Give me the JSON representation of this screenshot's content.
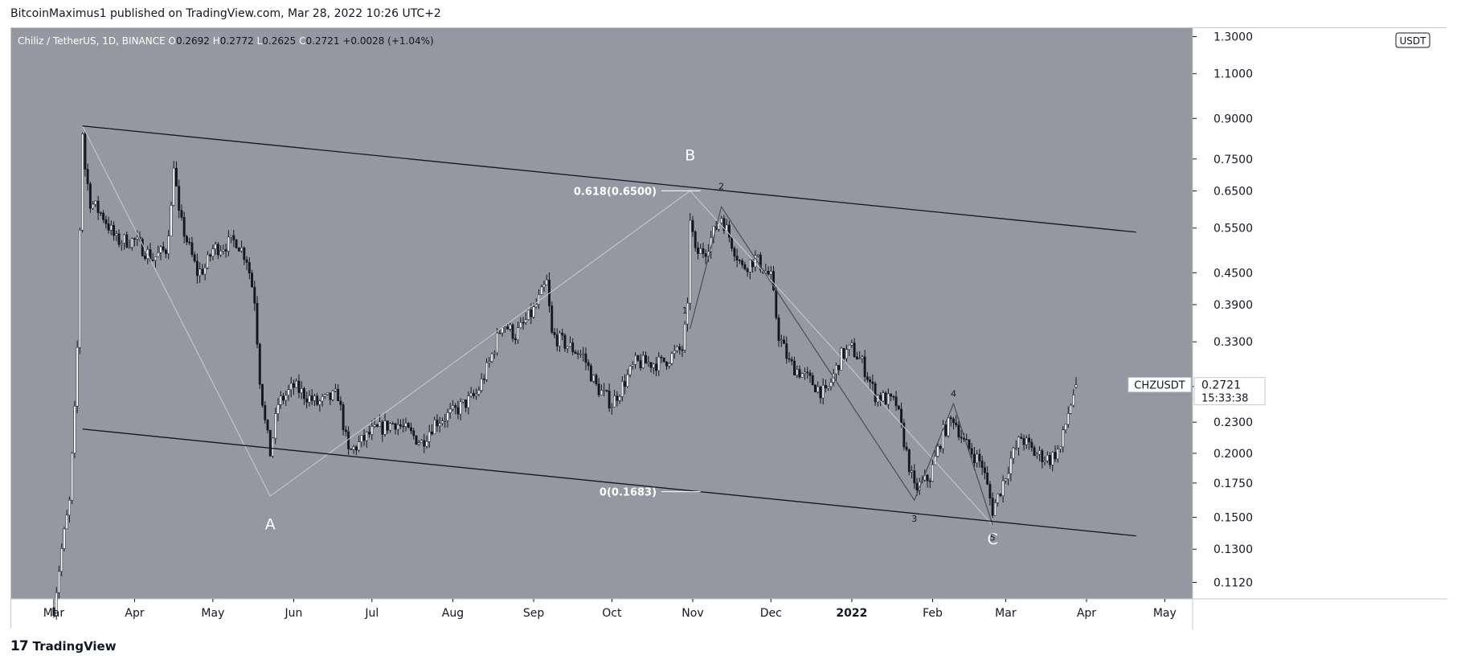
{
  "header": {
    "publisher": "BitcoinMaximus1 published on TradingView.com, Mar 28, 2022 10:26 UTC+2"
  },
  "footer": {
    "brand": "TradingView",
    "logo_icon": "tradingview-logo-icon"
  },
  "colors": {
    "background": "#9598a1",
    "axis_bg": "#ffffff",
    "candle_up": "#ffffff",
    "candle_down": "#131722",
    "channel": "#131722",
    "wave": "#4a4e59",
    "wave_light": "#c9cbd1",
    "label_text": "#ffffff"
  },
  "chart_data": {
    "type": "candlestick",
    "title": "Chiliz / TetherUS, 1D, BINANCE",
    "ohlc": {
      "o_label": "O",
      "o": "0.2692",
      "h_label": "H",
      "h": "0.2772",
      "l_label": "L",
      "l": "0.2625",
      "c_label": "C",
      "c": "0.2721",
      "change": "+0.0028 (+1.04%)"
    },
    "y_scale": "log",
    "ylim": [
      0.104,
      1.35
    ],
    "y_ticks": [
      "1.3000",
      "1.1000",
      "0.9000",
      "0.7500",
      "0.6500",
      "0.5500",
      "0.4500",
      "0.3900",
      "0.3300",
      "0.2700",
      "0.2300",
      "0.2000",
      "0.1750",
      "0.1500",
      "0.1300",
      "0.1120"
    ],
    "currency_badge": "USDT",
    "x_ticks": [
      "Mar",
      "Apr",
      "May",
      "Jun",
      "Jul",
      "Aug",
      "Sep",
      "Oct",
      "Nov",
      "Dec",
      "2022",
      "Feb",
      "Mar",
      "Apr",
      "May"
    ],
    "x_tick_dates": [
      "2021-03-01",
      "2021-04-01",
      "2021-05-01",
      "2021-06-01",
      "2021-07-01",
      "2021-08-01",
      "2021-09-01",
      "2021-10-01",
      "2021-11-01",
      "2021-12-01",
      "2022-01-01",
      "2022-02-01",
      "2022-03-01",
      "2022-04-01",
      "2022-05-01"
    ],
    "price_path": [
      [
        "2021-03-01",
        0.1
      ],
      [
        "2021-03-04",
        0.13
      ],
      [
        "2021-03-07",
        0.16
      ],
      [
        "2021-03-09",
        0.24
      ],
      [
        "2021-03-10",
        0.32
      ],
      [
        "2021-03-11",
        0.55
      ],
      [
        "2021-03-12",
        0.85
      ],
      [
        "2021-03-13",
        0.72
      ],
      [
        "2021-03-15",
        0.62
      ],
      [
        "2021-03-20",
        0.58
      ],
      [
        "2021-03-25",
        0.52
      ],
      [
        "2021-04-01",
        0.52
      ],
      [
        "2021-04-08",
        0.48
      ],
      [
        "2021-04-13",
        0.5
      ],
      [
        "2021-04-15",
        0.6
      ],
      [
        "2021-04-16",
        0.74
      ],
      [
        "2021-04-18",
        0.58
      ],
      [
        "2021-04-25",
        0.45
      ],
      [
        "2021-04-28",
        0.46
      ],
      [
        "2021-05-01",
        0.5
      ],
      [
        "2021-05-10",
        0.52
      ],
      [
        "2021-05-14",
        0.48
      ],
      [
        "2021-05-17",
        0.4
      ],
      [
        "2021-05-19",
        0.28
      ],
      [
        "2021-05-21",
        0.23
      ],
      [
        "2021-05-23",
        0.2
      ],
      [
        "2021-05-26",
        0.25
      ],
      [
        "2021-06-01",
        0.27
      ],
      [
        "2021-06-10",
        0.25
      ],
      [
        "2021-06-18",
        0.26
      ],
      [
        "2021-06-22",
        0.2
      ],
      [
        "2021-07-01",
        0.22
      ],
      [
        "2021-07-10",
        0.23
      ],
      [
        "2021-07-20",
        0.21
      ],
      [
        "2021-07-25",
        0.23
      ],
      [
        "2021-08-01",
        0.24
      ],
      [
        "2021-08-10",
        0.26
      ],
      [
        "2021-08-15",
        0.3
      ],
      [
        "2021-08-20",
        0.36
      ],
      [
        "2021-08-25",
        0.34
      ],
      [
        "2021-09-01",
        0.38
      ],
      [
        "2021-09-06",
        0.43
      ],
      [
        "2021-09-08",
        0.34
      ],
      [
        "2021-09-20",
        0.31
      ],
      [
        "2021-09-25",
        0.27
      ],
      [
        "2021-10-01",
        0.25
      ],
      [
        "2021-10-10",
        0.3
      ],
      [
        "2021-10-20",
        0.3
      ],
      [
        "2021-10-28",
        0.32
      ],
      [
        "2021-10-30",
        0.38
      ],
      [
        "2021-10-31",
        0.58
      ],
      [
        "2021-11-02",
        0.49
      ],
      [
        "2021-11-06",
        0.5
      ],
      [
        "2021-11-12",
        0.58
      ],
      [
        "2021-11-15",
        0.53
      ],
      [
        "2021-11-20",
        0.46
      ],
      [
        "2021-11-25",
        0.48
      ],
      [
        "2021-12-01",
        0.44
      ],
      [
        "2021-12-04",
        0.34
      ],
      [
        "2021-12-08",
        0.3
      ],
      [
        "2021-12-15",
        0.28
      ],
      [
        "2021-12-22",
        0.26
      ],
      [
        "2021-12-28",
        0.31
      ],
      [
        "2022-01-01",
        0.32
      ],
      [
        "2022-01-05",
        0.3
      ],
      [
        "2022-01-10",
        0.26
      ],
      [
        "2022-01-18",
        0.25
      ],
      [
        "2022-01-22",
        0.2
      ],
      [
        "2022-01-25",
        0.17
      ],
      [
        "2022-01-31",
        0.18
      ],
      [
        "2022-02-05",
        0.22
      ],
      [
        "2022-02-09",
        0.235
      ],
      [
        "2022-02-13",
        0.21
      ],
      [
        "2022-02-20",
        0.19
      ],
      [
        "2022-02-24",
        0.155
      ],
      [
        "2022-02-27",
        0.17
      ],
      [
        "2022-03-03",
        0.195
      ],
      [
        "2022-03-07",
        0.215
      ],
      [
        "2022-03-12",
        0.2
      ],
      [
        "2022-03-18",
        0.195
      ],
      [
        "2022-03-22",
        0.205
      ],
      [
        "2022-03-25",
        0.24
      ],
      [
        "2022-03-28",
        0.2721
      ]
    ],
    "channel_upper": {
      "from": [
        "2021-03-12",
        0.87
      ],
      "to": [
        "2022-04-20",
        0.54
      ]
    },
    "channel_lower": {
      "from": [
        "2021-03-12",
        0.223
      ],
      "to": [
        "2022-04-20",
        0.138
      ]
    },
    "abc_path": [
      [
        "2021-03-12",
        0.87
      ],
      [
        "2021-05-23",
        0.165
      ],
      [
        "2021-10-31",
        0.65
      ],
      [
        "2022-02-24",
        0.145
      ]
    ],
    "wave_path": [
      [
        "2021-10-31",
        0.35
      ],
      [
        "2021-11-12",
        0.605
      ],
      [
        "2022-01-25",
        0.162
      ],
      [
        "2022-02-09",
        0.25
      ],
      [
        "2022-02-24",
        0.145
      ]
    ],
    "wave_labels": [
      {
        "text": "A",
        "date": "2021-05-23",
        "price": 0.142
      },
      {
        "text": "B",
        "date": "2021-10-31",
        "price": 0.745
      },
      {
        "text": "C",
        "date": "2022-02-24",
        "price": 0.133
      },
      {
        "text": "1",
        "date": "2021-10-29",
        "price": 0.375
      },
      {
        "text": "2",
        "date": "2021-11-12",
        "price": 0.655
      },
      {
        "text": "3",
        "date": "2022-01-25",
        "price": 0.147
      },
      {
        "text": "4",
        "date": "2022-02-09",
        "price": 0.258
      },
      {
        "text": "5",
        "date": "2022-02-24",
        "price": 0.135
      }
    ],
    "fib_levels": [
      {
        "label": "0.618(0.6500)",
        "price": 0.65,
        "from": "2021-10-20",
        "to": "2021-11-04"
      },
      {
        "label": "0(0.1683)",
        "price": 0.1683,
        "from": "2021-10-20",
        "to": "2021-11-04"
      }
    ],
    "last_price": {
      "symbol": "CHZUSDT",
      "price": "0.2721",
      "countdown": "15:33:38"
    }
  }
}
